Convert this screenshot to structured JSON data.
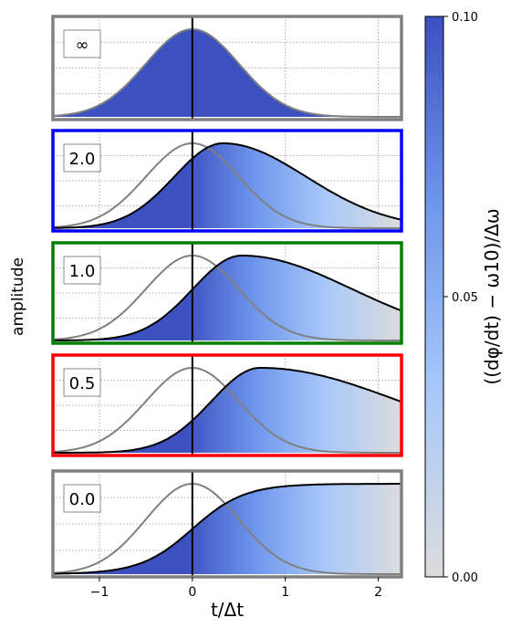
{
  "chart_data": {
    "type": "line",
    "shared_axes": {
      "xlabel": "t/Δt",
      "ylabel": "amplitude",
      "xlim": [
        -1.5,
        2.25
      ],
      "xticks": [
        -1,
        0,
        1,
        2
      ],
      "xtick_labels": [
        "−1",
        "0",
        "1",
        "2"
      ]
    },
    "colorbar": {
      "label": "((dφ/dt) − ω10)/Δω",
      "range": [
        0.0,
        0.1
      ],
      "ticks": [
        0.0,
        0.05,
        0.1
      ],
      "tick_labels": [
        "0.00",
        "0.05",
        "0.10"
      ],
      "colors": [
        "#dcdcdc",
        "#a8c8fa",
        "#6e96ec",
        "#3c50c0"
      ]
    },
    "reference_pulse": {
      "description": "gray Gaussian drive envelope",
      "center": 0.0,
      "sigma": 0.5,
      "color": "#808080"
    },
    "panels": [
      {
        "label": "∞",
        "frame_color": "#808080",
        "series": [
          {
            "color": "#808080",
            "center": 0.0,
            "peak": 1.0
          }
        ]
      },
      {
        "label": "2.0",
        "frame_color": "#0000ff",
        "series": [
          {
            "color": "#000000",
            "peak_x": 0.33,
            "peak": 1.0,
            "end_value": 0.1
          }
        ]
      },
      {
        "label": "1.0",
        "frame_color": "#008000",
        "series": [
          {
            "color": "#000000",
            "peak_x": 0.53,
            "peak": 1.0,
            "end_value": 0.35
          }
        ]
      },
      {
        "label": "0.5",
        "frame_color": "#ff0000",
        "series": [
          {
            "color": "#000000",
            "peak_x": 0.73,
            "peak": 1.0,
            "end_value": 0.6
          }
        ]
      },
      {
        "label": "0.0",
        "frame_color": "#808080",
        "series": [
          {
            "color": "#000000",
            "shape": "step-like rise",
            "half_point_x": 0.0,
            "plateau": 1.0
          }
        ]
      }
    ]
  }
}
